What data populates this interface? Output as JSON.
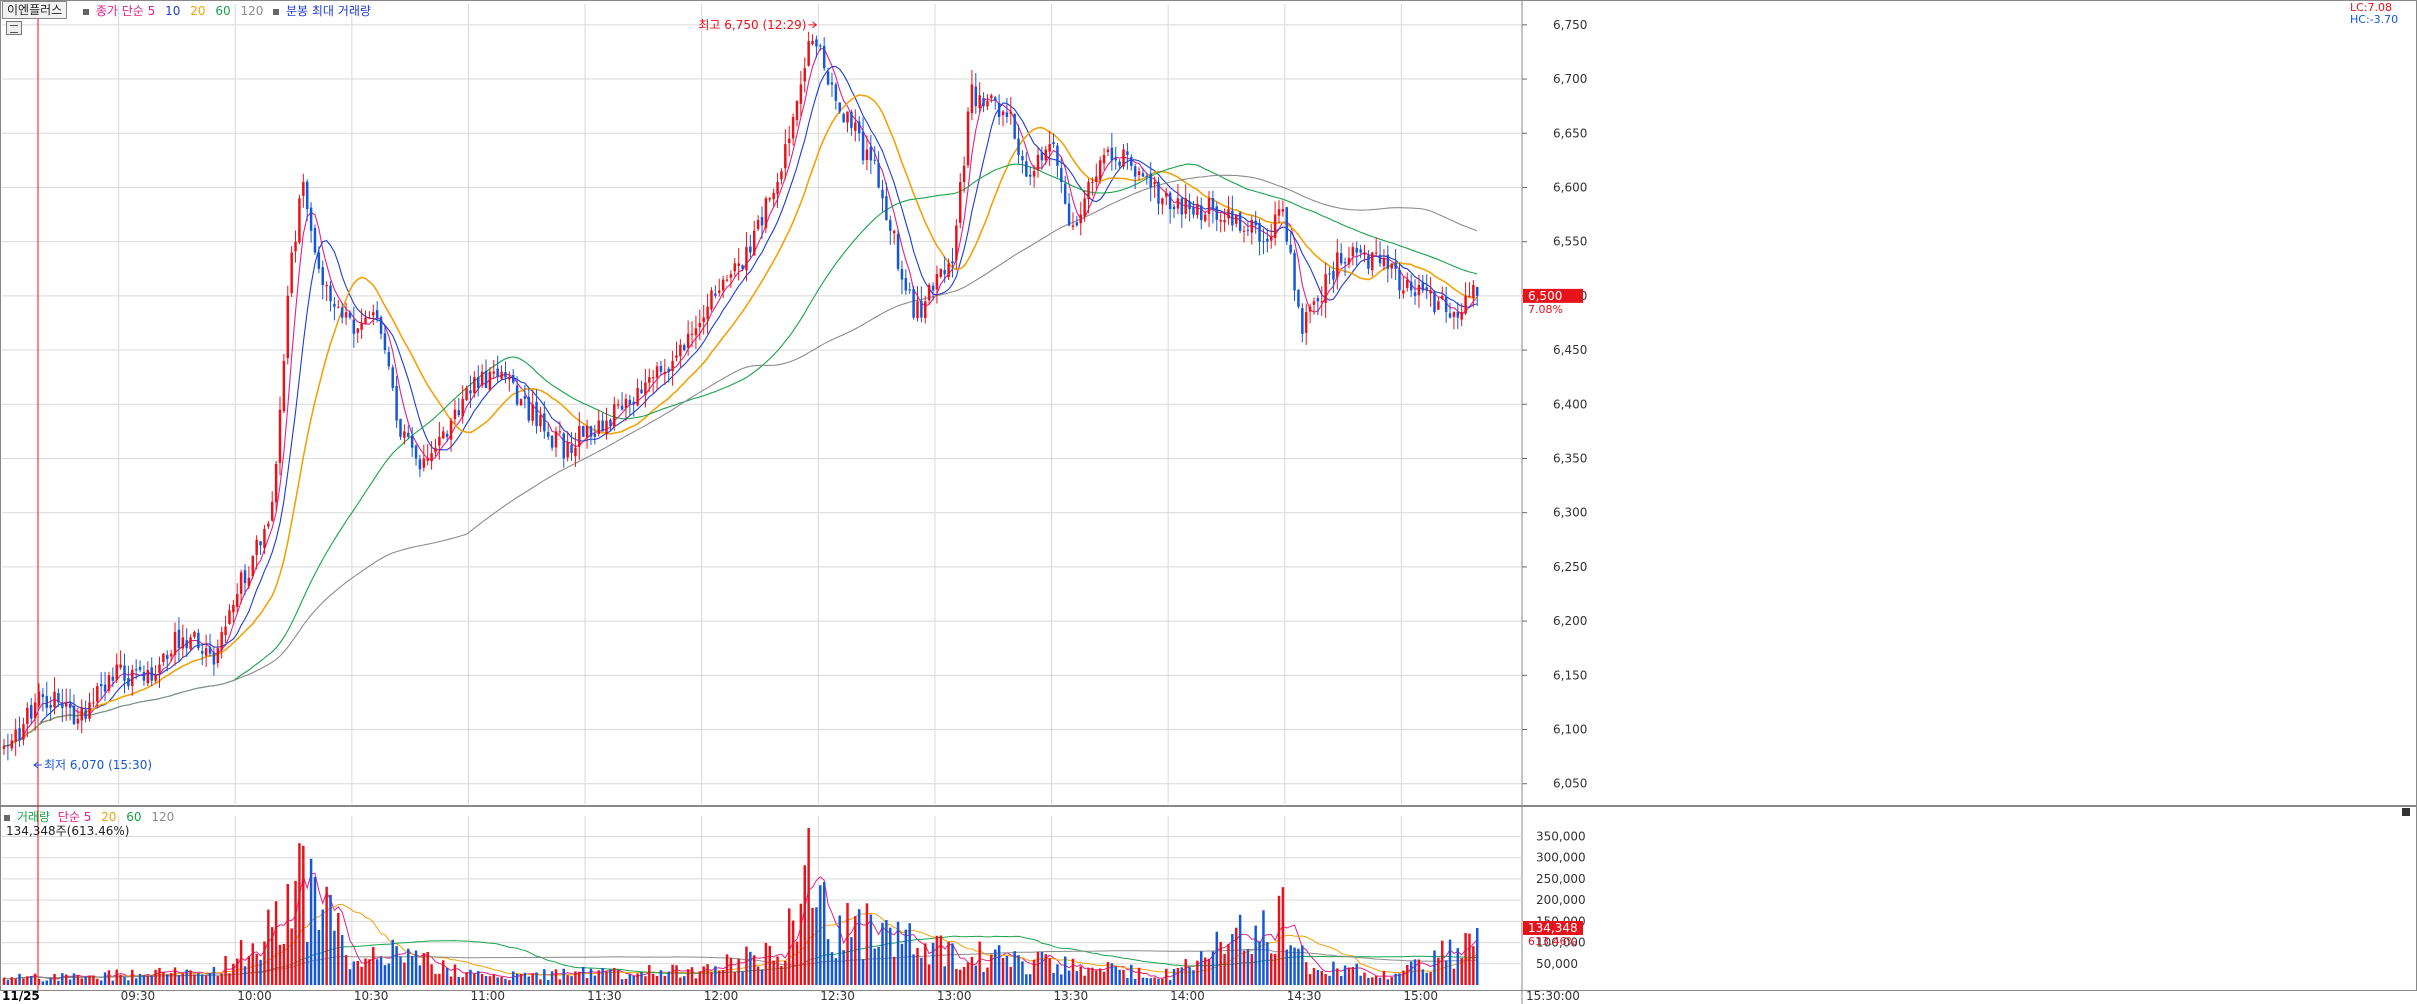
{
  "header": {
    "stock_name": "이엔플러스",
    "price_legend": {
      "prefix": "종가 단순",
      "periods": [
        "5",
        "10",
        "20",
        "60",
        "120"
      ],
      "period_colors": [
        "#e0218a",
        "#1f3bd6",
        "#f0a30a",
        "#1aa34a",
        "#8c8c8c"
      ],
      "extra": "분봉 최대 거래량"
    },
    "lc_label": "LC:7.08",
    "hc_label": "HC:-3.70"
  },
  "volume_header": {
    "prefix": "거래량",
    "ma_label": "단순",
    "periods": [
      "5",
      "20",
      "60",
      "120"
    ],
    "period_colors": [
      "#e0218a",
      "#f0a30a",
      "#1aa34a",
      "#8c8c8c"
    ],
    "readout": "134,348주(613.46%)"
  },
  "annotations": {
    "high": "최고 6,750 (12:29)",
    "low": "최저 6,070 (15:30)"
  },
  "current": {
    "price": "6,500",
    "change_pct": "7.08%",
    "volume": "134,348",
    "volume_pct": "613.46%"
  },
  "colors": {
    "up": "#e8121b",
    "down": "#1656d8",
    "grid": "#d9d9d9",
    "axis_text": "#333333",
    "current_tag_bg": "#e8121b"
  },
  "chart_data": [
    {
      "type": "candlestick",
      "title": "이엔플러스 분봉",
      "xlabel": "",
      "ylabel": "",
      "date_label": "11/25",
      "x_ticks": [
        "09:30",
        "10:00",
        "10:30",
        "11:00",
        "11:30",
        "12:00",
        "12:30",
        "13:00",
        "13:30",
        "14:00",
        "14:30",
        "15:00",
        "15:30:00"
      ],
      "y_ticks": [
        "6,050",
        "6,100",
        "6,150",
        "6,200",
        "6,250",
        "6,300",
        "6,350",
        "6,400",
        "6,450",
        "6,500",
        "6,550",
        "6,600",
        "6,650",
        "6,700",
        "6,750"
      ],
      "ylim": [
        6035,
        6760
      ],
      "session": [
        "09:00",
        "15:30"
      ],
      "moving_averages": [
        5,
        10,
        20,
        60,
        120
      ],
      "price_path": [
        [
          "09:00",
          6080
        ],
        [
          "09:05",
          6100
        ],
        [
          "09:10",
          6130
        ],
        [
          "09:20",
          6110
        ],
        [
          "09:30",
          6150
        ],
        [
          "09:40",
          6150
        ],
        [
          "09:45",
          6185
        ],
        [
          "09:55",
          6170
        ],
        [
          "10:00",
          6220
        ],
        [
          "10:05",
          6260
        ],
        [
          "10:10",
          6300
        ],
        [
          "10:15",
          6540
        ],
        [
          "10:18",
          6600
        ],
        [
          "10:22",
          6520
        ],
        [
          "10:30",
          6470
        ],
        [
          "10:35",
          6475
        ],
        [
          "10:38",
          6470
        ],
        [
          "10:42",
          6390
        ],
        [
          "10:47",
          6340
        ],
        [
          "10:55",
          6380
        ],
        [
          "11:00",
          6415
        ],
        [
          "11:10",
          6430
        ],
        [
          "11:15",
          6400
        ],
        [
          "11:25",
          6360
        ],
        [
          "11:30",
          6370
        ],
        [
          "11:40",
          6400
        ],
        [
          "11:50",
          6430
        ],
        [
          "12:00",
          6480
        ],
        [
          "12:10",
          6530
        ],
        [
          "12:20",
          6600
        ],
        [
          "12:29",
          6740
        ],
        [
          "12:35",
          6680
        ],
        [
          "12:45",
          6620
        ],
        [
          "12:55",
          6480
        ],
        [
          "13:05",
          6540
        ],
        [
          "13:10",
          6690
        ],
        [
          "13:20",
          6660
        ],
        [
          "13:25",
          6600
        ],
        [
          "13:30",
          6650
        ],
        [
          "13:35",
          6560
        ],
        [
          "13:45",
          6640
        ],
        [
          "13:55",
          6600
        ],
        [
          "14:05",
          6580
        ],
        [
          "14:15",
          6580
        ],
        [
          "14:25",
          6550
        ],
        [
          "14:30",
          6580
        ],
        [
          "14:35",
          6470
        ],
        [
          "14:45",
          6540
        ],
        [
          "14:55",
          6530
        ],
        [
          "15:05",
          6500
        ],
        [
          "15:15",
          6490
        ],
        [
          "15:20",
          6500
        ]
      ],
      "volume_ticks": [
        "50,000",
        "100,000",
        "150,000",
        "200,000",
        "250,000",
        "300,000",
        "350,000"
      ],
      "volume_ylim": [
        0,
        370000
      ],
      "volume_path": [
        [
          "09:00",
          20000
        ],
        [
          "09:30",
          30000
        ],
        [
          "09:55",
          40000
        ],
        [
          "10:12",
          200000
        ],
        [
          "10:15",
          300000
        ],
        [
          "10:20",
          250000
        ],
        [
          "10:30",
          60000
        ],
        [
          "10:40",
          90000
        ],
        [
          "11:00",
          30000
        ],
        [
          "11:30",
          35000
        ],
        [
          "12:00",
          40000
        ],
        [
          "12:20",
          100000
        ],
        [
          "12:28",
          350000
        ],
        [
          "12:32",
          180000
        ],
        [
          "12:40",
          150000
        ],
        [
          "12:45",
          170000
        ],
        [
          "12:55",
          110000
        ],
        [
          "13:05",
          90000
        ],
        [
          "13:30",
          60000
        ],
        [
          "14:00",
          30000
        ],
        [
          "14:30",
          210000
        ],
        [
          "14:35",
          50000
        ],
        [
          "15:00",
          35000
        ],
        [
          "15:20",
          134348
        ]
      ]
    }
  ]
}
